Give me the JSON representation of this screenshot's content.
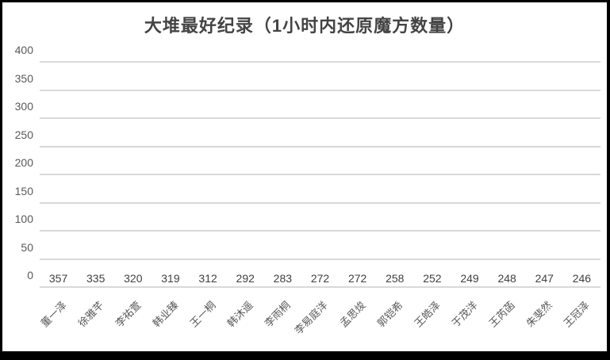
{
  "chart_data": {
    "type": "bar",
    "title": "大堆最好纪录（1小时内还原魔方数量）",
    "categories": [
      "董一泽",
      "徐雅芊",
      "李祐萱",
      "韩业臻",
      "王一桐",
      "韩沐遥",
      "李雨桐",
      "李易庭洋",
      "孟思焌",
      "郭铠希",
      "王皓泽",
      "于茂洋",
      "王芮菡",
      "朱斐然",
      "王冠泽"
    ],
    "values": [
      357,
      335,
      320,
      319,
      312,
      292,
      283,
      272,
      272,
      258,
      252,
      249,
      248,
      247,
      246
    ],
    "xlabel": "",
    "ylabel": "",
    "ylim": [
      0,
      400
    ],
    "ytick_step": 50,
    "yticks": [
      0,
      50,
      100,
      150,
      200,
      250,
      300,
      350,
      400
    ],
    "grid": true,
    "legend_position": "none",
    "data_labels": true,
    "bar_color": "#5b9bd5",
    "gridline_color": "#d9d9d9",
    "axis_text_color": "#595959",
    "value_label_color": "#404040",
    "title_color": "#444444",
    "background_color": "#ffffff",
    "frame_color": "#000000"
  }
}
